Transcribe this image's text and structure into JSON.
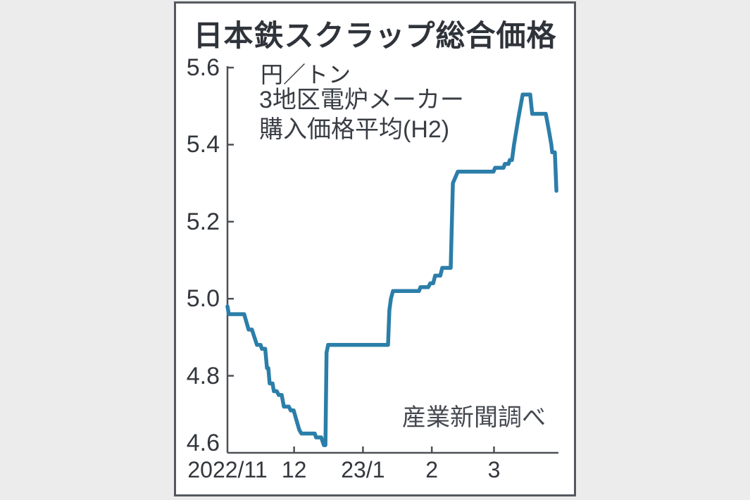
{
  "page": {
    "background_color": "#ececec",
    "card_background": "#ffffff",
    "card_border_color": "#55595f"
  },
  "chart_data": {
    "type": "line",
    "title": "日本鉄スクラップ総合価格",
    "unit_label": "円／トン",
    "annotation_line1": "3地区電炉メーカー",
    "annotation_line2": "購入価格平均(H2)",
    "source": "産業新聞調べ",
    "line_color": "#2b7ea9",
    "axis_color": "#4d5156",
    "text_color": "#33373d",
    "grid": "off",
    "y_axis": {
      "min": 4.6,
      "max": 5.6,
      "tick_step": 0.2,
      "tick_values": [
        5.6,
        5.4,
        5.2,
        5.0,
        4.8,
        4.6
      ],
      "tick_labels": [
        "5.6",
        "5.4",
        "5.2",
        "5.0",
        "4.8",
        "4.6"
      ]
    },
    "x_axis": {
      "unit": "days from 2022-11-01",
      "day_span": 149,
      "ticks": [
        {
          "label": "2022/11",
          "day": 0
        },
        {
          "label": "12",
          "day": 30
        },
        {
          "label": "23/1",
          "day": 61
        },
        {
          "label": "2",
          "day": 92
        },
        {
          "label": "3",
          "day": 120
        }
      ]
    },
    "series": [
      {
        "name": "日本鉄スクラップ総合価格(3地区電炉メーカー購入価格平均H2)",
        "points": [
          [
            0,
            4.98
          ],
          [
            0.6,
            4.96
          ],
          [
            7.5,
            4.96
          ],
          [
            9.5,
            4.92
          ],
          [
            11,
            4.92
          ],
          [
            13.3,
            4.88
          ],
          [
            14.9,
            4.88
          ],
          [
            15.5,
            4.87
          ],
          [
            17,
            4.87
          ],
          [
            17.8,
            4.82
          ],
          [
            18.4,
            4.82
          ],
          [
            19,
            4.78
          ],
          [
            20.3,
            4.78
          ],
          [
            20.9,
            4.76
          ],
          [
            22.2,
            4.76
          ],
          [
            23.1,
            4.75
          ],
          [
            24.4,
            4.75
          ],
          [
            25.4,
            4.72
          ],
          [
            27.6,
            4.72
          ],
          [
            28.5,
            4.71
          ],
          [
            29.8,
            4.71
          ],
          [
            30.8,
            4.69
          ],
          [
            32.3,
            4.66
          ],
          [
            33.3,
            4.65
          ],
          [
            39.3,
            4.65
          ],
          [
            39.9,
            4.64
          ],
          [
            42.2,
            4.64
          ],
          [
            42.8,
            4.63
          ],
          [
            43.4,
            4.62
          ],
          [
            44.1,
            4.62
          ],
          [
            44.6,
            4.86
          ],
          [
            45.3,
            4.88
          ],
          [
            72.3,
            4.88
          ],
          [
            72.9,
            4.97
          ],
          [
            73.6,
            5.0
          ],
          [
            74.5,
            5.02
          ],
          [
            86.2,
            5.02
          ],
          [
            86.9,
            5.03
          ],
          [
            90.4,
            5.03
          ],
          [
            91.3,
            5.04
          ],
          [
            92.6,
            5.04
          ],
          [
            93.5,
            5.06
          ],
          [
            95.8,
            5.06
          ],
          [
            96.7,
            5.08
          ],
          [
            100.5,
            5.08
          ],
          [
            101.5,
            5.3
          ],
          [
            103.7,
            5.33
          ],
          [
            119.8,
            5.33
          ],
          [
            120.5,
            5.34
          ],
          [
            124.3,
            5.34
          ],
          [
            124.9,
            5.35
          ],
          [
            126.5,
            5.35
          ],
          [
            127.1,
            5.36
          ],
          [
            128.1,
            5.36
          ],
          [
            129,
            5.4
          ],
          [
            131,
            5.47
          ],
          [
            132.9,
            5.53
          ],
          [
            136.3,
            5.53
          ],
          [
            137.2,
            5.48
          ],
          [
            143.3,
            5.48
          ],
          [
            144.6,
            5.44
          ],
          [
            145.8,
            5.4
          ],
          [
            146.2,
            5.38
          ],
          [
            147.4,
            5.38
          ],
          [
            148.1,
            5.28
          ]
        ]
      }
    ]
  }
}
